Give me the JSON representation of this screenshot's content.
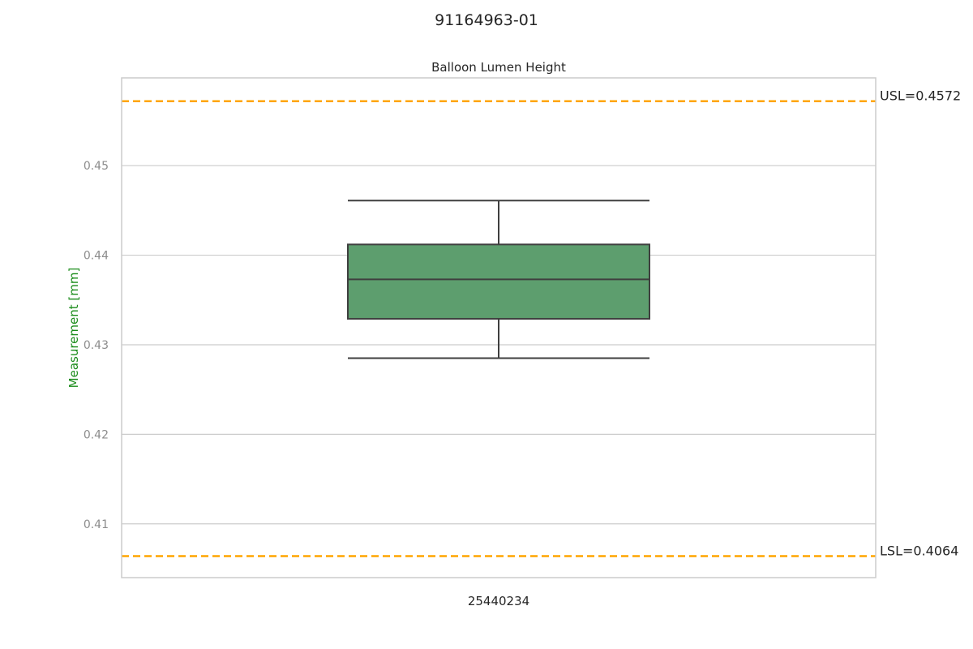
{
  "chart_data": {
    "type": "box",
    "suptitle": "91164963-01",
    "title": "Balloon Lumen Height",
    "xlabel": "",
    "ylabel": "Measurement [mm]",
    "ylim": [
      0.404,
      0.4598
    ],
    "yticks": [
      "0.41",
      "0.42",
      "0.43",
      "0.44",
      "0.45"
    ],
    "ytick_values": [
      0.41,
      0.42,
      0.43,
      0.44,
      0.45
    ],
    "grid": true,
    "categories": [
      "25440234"
    ],
    "boxes": [
      {
        "category": "25440234",
        "whisker_low": 0.4285,
        "q1": 0.4329,
        "median": 0.4373,
        "q3": 0.4412,
        "whisker_high": 0.4461
      }
    ],
    "box_color": "#5d9e6e",
    "limits": [
      {
        "label": "USL=0.4572",
        "value": 0.4572,
        "color": "#ffa500"
      },
      {
        "label": "LSL=0.4064",
        "value": 0.4064,
        "color": "#ffa500"
      }
    ]
  }
}
